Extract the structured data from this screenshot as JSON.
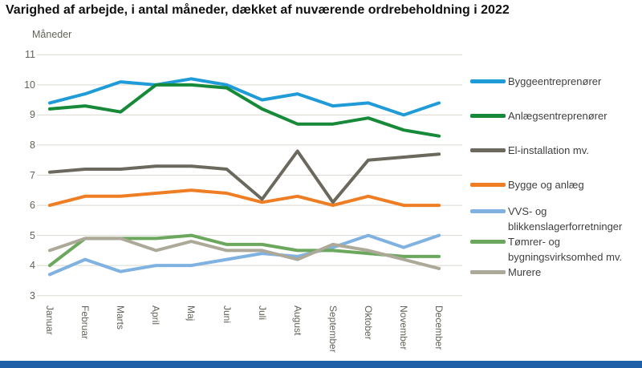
{
  "title": "Varighed af arbejde, i antal måneder, dækket af nuværende ordrebeholdning i 2022",
  "footer": {
    "bar_color": "#1F5FA8"
  },
  "chart_data": {
    "type": "line",
    "title": "Varighed af arbejde, i antal måneder, dækket af nuværende ordrebeholdning i 2022",
    "ylabel": "Måneder",
    "xlabel": "",
    "ylim": [
      3,
      11
    ],
    "y_ticks": [
      11,
      10,
      9,
      8,
      7,
      6,
      5,
      4,
      3
    ],
    "grid": "horizontal",
    "gridline_color": "#D9D9D1",
    "legend_position": "right",
    "categories": [
      "Januar",
      "Februar",
      "Marts",
      "April",
      "Maj",
      "Juni",
      "Juli",
      "August",
      "September",
      "Oktober",
      "November",
      "December"
    ],
    "series": [
      {
        "name": "Byggeentreprenører",
        "color": "#1F9BD8",
        "values": [
          9.4,
          9.7,
          10.1,
          10.0,
          10.2,
          10.0,
          9.5,
          9.7,
          9.3,
          9.4,
          9.0,
          9.4
        ]
      },
      {
        "name": "Anlægsentreprenører",
        "color": "#168A38",
        "values": [
          9.2,
          9.3,
          9.1,
          10.0,
          10.0,
          9.9,
          9.2,
          8.7,
          8.7,
          8.9,
          8.5,
          8.3
        ]
      },
      {
        "name": "El-installation mv.",
        "color": "#6B695E",
        "values": [
          7.1,
          7.2,
          7.2,
          7.3,
          7.3,
          7.2,
          6.2,
          7.8,
          6.1,
          7.5,
          7.6,
          7.7
        ]
      },
      {
        "name": "Bygge og anlæg",
        "color": "#EE7D23",
        "values": [
          6.0,
          6.3,
          6.3,
          6.4,
          6.5,
          6.4,
          6.1,
          6.3,
          6.0,
          6.3,
          6.0,
          6.0
        ]
      },
      {
        "name": "VVS- og blikkenslagerforretninger",
        "color": "#7FB2E0",
        "values": [
          3.7,
          4.2,
          3.8,
          4.0,
          4.0,
          4.2,
          4.4,
          4.3,
          4.6,
          5.0,
          4.6,
          5.0
        ]
      },
      {
        "name": "Tømrer- og bygningsvirksomhed mv.",
        "color": "#6BA75D",
        "values": [
          4.0,
          4.9,
          4.9,
          4.9,
          5.0,
          4.7,
          4.7,
          4.5,
          4.5,
          4.4,
          4.3,
          4.3
        ]
      },
      {
        "name": "Murere",
        "color": "#ADA999",
        "values": [
          4.5,
          4.9,
          4.9,
          4.5,
          4.8,
          4.5,
          4.5,
          4.2,
          4.7,
          4.5,
          4.2,
          3.9
        ]
      }
    ]
  }
}
